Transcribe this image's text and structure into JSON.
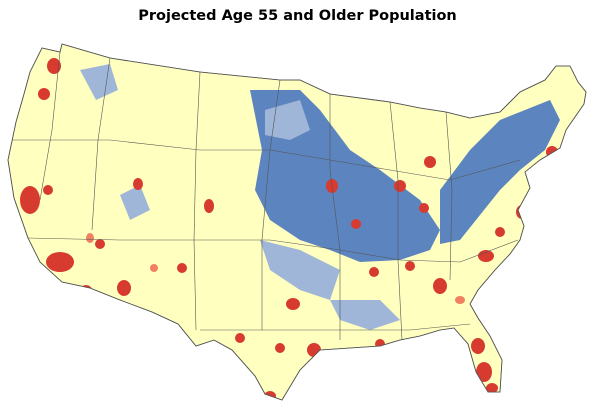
{
  "title": "Projected Age 55 and Older Population",
  "colors": {
    "background": "#ffffff",
    "land": "#ffffc0",
    "border": "#555555",
    "high": "#d73a2f",
    "medium_high": "#f08060",
    "medium_low": "#9fb6d8",
    "low": "#4a78c0"
  }
}
